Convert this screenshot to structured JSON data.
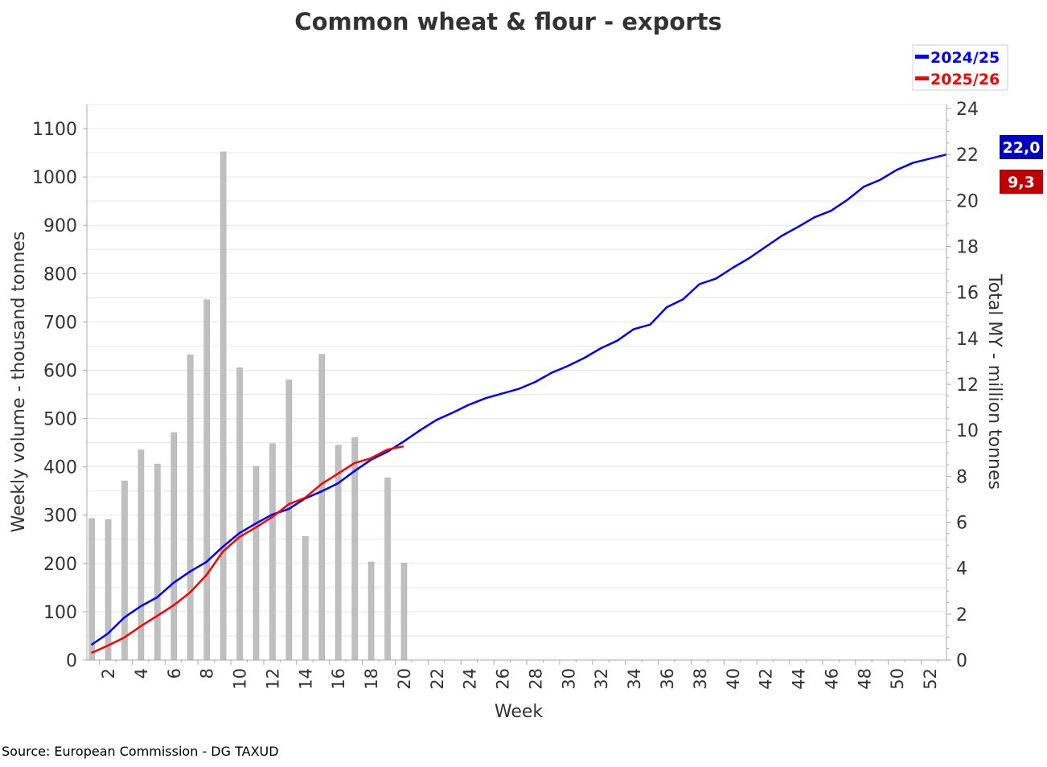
{
  "chart_data": {
    "type": "bar+line",
    "title": "Common wheat & flour - exports",
    "xlabel": "Week",
    "ylabel_left": "Weekly volume - thousand tonnes",
    "ylabel_right": "Total MY - million tonnes",
    "source": "Source: European Commission - DG TAXUD",
    "ylim_left": [
      0,
      1150
    ],
    "ylim_right": [
      0,
      24
    ],
    "left_ticks": [
      0,
      100,
      200,
      300,
      400,
      500,
      600,
      700,
      800,
      900,
      1000,
      1100
    ],
    "right_ticks": [
      0,
      2,
      4,
      6,
      8,
      10,
      12,
      14,
      16,
      18,
      20,
      22,
      24
    ],
    "x_tick_labels": [
      2,
      4,
      6,
      8,
      10,
      12,
      14,
      16,
      18,
      20,
      22,
      24,
      26,
      28,
      30,
      32,
      34,
      36,
      38,
      40,
      42,
      44,
      46,
      48,
      50,
      52
    ],
    "grid": true,
    "legend_position": "top-right",
    "bars": {
      "name": "Weekly volume 2025/26",
      "color": "#bfbfbf",
      "weeks": [
        1,
        2,
        3,
        4,
        5,
        6,
        7,
        8,
        9,
        10,
        11,
        12,
        13,
        14,
        15,
        16,
        17,
        18,
        19,
        20
      ],
      "values": [
        293,
        291,
        371,
        435,
        406,
        471,
        632,
        746,
        1052,
        605,
        401,
        448,
        580,
        256,
        633,
        445,
        461,
        203,
        377,
        201
      ]
    },
    "series": [
      {
        "name": "2024/25",
        "color": "#0000ff",
        "end_label": "22,0",
        "label_bg": "#0000c0",
        "values": [
          0.66,
          1.15,
          1.85,
          2.34,
          2.73,
          3.36,
          3.85,
          4.27,
          4.93,
          5.52,
          5.94,
          6.33,
          6.57,
          7.03,
          7.34,
          7.69,
          8.22,
          8.71,
          9.06,
          9.51,
          10.0,
          10.45,
          10.77,
          11.12,
          11.4,
          11.6,
          11.8,
          12.1,
          12.5,
          12.8,
          13.15,
          13.57,
          13.9,
          14.4,
          14.6,
          15.35,
          15.7,
          16.36,
          16.6,
          17.06,
          17.48,
          17.97,
          18.46,
          18.85,
          19.27,
          19.55,
          20.03,
          20.6,
          20.9,
          21.33,
          21.64,
          22.0
        ]
      },
      {
        "name": "2025/26",
        "color": "#ff0000",
        "end_label": "9,3",
        "label_bg": "#c00000",
        "values": [
          0.31,
          0.63,
          0.98,
          1.47,
          1.92,
          2.38,
          2.94,
          3.7,
          4.72,
          5.35,
          5.77,
          6.22,
          6.78,
          7.06,
          7.66,
          8.11,
          8.57,
          8.78,
          9.16,
          9.3
        ]
      }
    ]
  }
}
